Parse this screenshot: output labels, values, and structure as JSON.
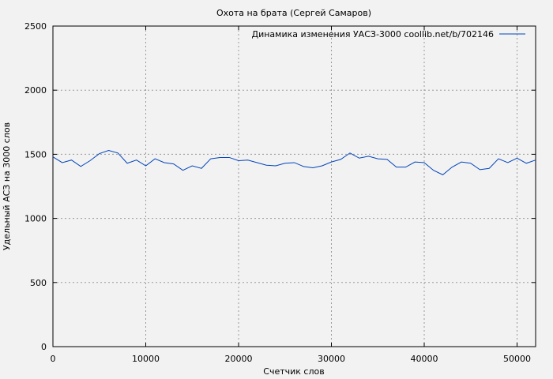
{
  "chart_data": {
    "type": "line",
    "title": "Охота на брата (Сергей Самаров)",
    "xlabel": "Счетчик слов",
    "ylabel": "Удельный АСЗ на 3000 слов",
    "xlim": [
      0,
      52000
    ],
    "ylim": [
      0,
      2500
    ],
    "xticks": [
      0,
      10000,
      20000,
      30000,
      40000,
      50000
    ],
    "yticks": [
      0,
      500,
      1000,
      1500,
      2000,
      2500
    ],
    "grid": true,
    "legend_position": "top-right",
    "color": "#0044bb",
    "series": [
      {
        "name": "Динамика изменения УАСЗ-3000 coollib.net/b/702146",
        "x": [
          0,
          1000,
          2000,
          3000,
          4000,
          5000,
          6000,
          7000,
          8000,
          9000,
          10000,
          11000,
          12000,
          13000,
          14000,
          15000,
          16000,
          17000,
          18000,
          19000,
          20000,
          21000,
          22000,
          23000,
          24000,
          25000,
          26000,
          27000,
          28000,
          29000,
          30000,
          31000,
          32000,
          33000,
          34000,
          35000,
          36000,
          37000,
          38000,
          39000,
          40000,
          41000,
          42000,
          43000,
          44000,
          45000,
          46000,
          47000,
          48000,
          49000,
          50000,
          51000,
          52000
        ],
        "y": [
          1480,
          1435,
          1455,
          1405,
          1450,
          1505,
          1530,
          1510,
          1430,
          1455,
          1410,
          1465,
          1435,
          1425,
          1375,
          1410,
          1390,
          1465,
          1475,
          1475,
          1450,
          1455,
          1435,
          1415,
          1410,
          1430,
          1435,
          1405,
          1395,
          1410,
          1440,
          1460,
          1510,
          1470,
          1485,
          1465,
          1460,
          1400,
          1400,
          1440,
          1435,
          1375,
          1340,
          1400,
          1440,
          1430,
          1380,
          1390,
          1465,
          1435,
          1470,
          1430,
          1455
        ]
      }
    ]
  }
}
